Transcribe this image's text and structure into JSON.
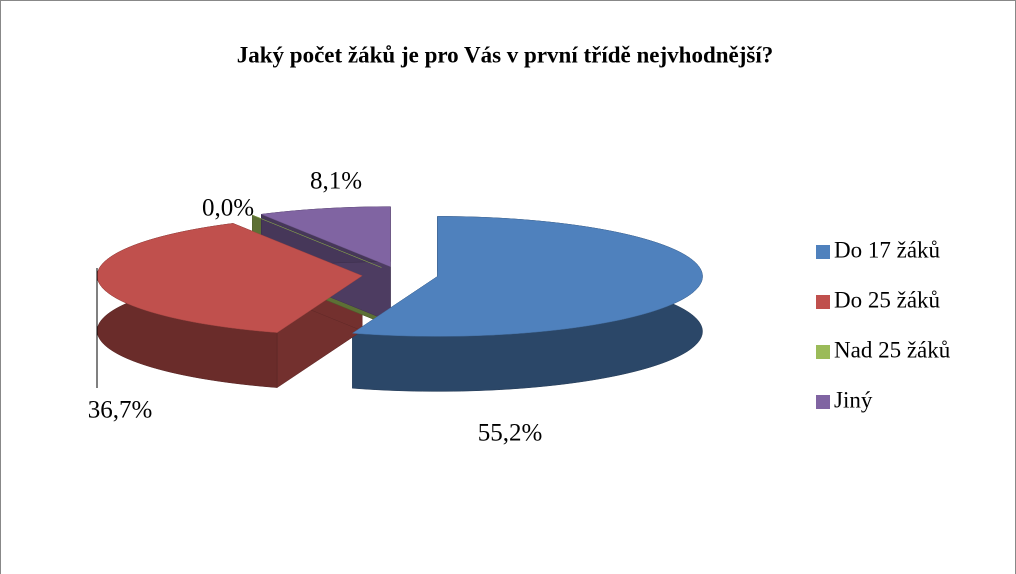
{
  "chart_data": {
    "type": "pie3d",
    "title": "Jaký počet žáků je pro Vás v první třídě nejvhodnější?",
    "categories": [
      "Do 17 žáků",
      "Do 25 žáků",
      "Nad 25 žáků",
      "Jiný"
    ],
    "values": [
      55.2,
      36.7,
      0.0,
      8.1
    ],
    "value_labels": [
      "55,2%",
      "36,7%",
      "0,0%",
      "8,1%"
    ],
    "colors": [
      "#4f81bd",
      "#c0504d",
      "#9bbb59",
      "#8064a2"
    ],
    "legend": "right"
  }
}
